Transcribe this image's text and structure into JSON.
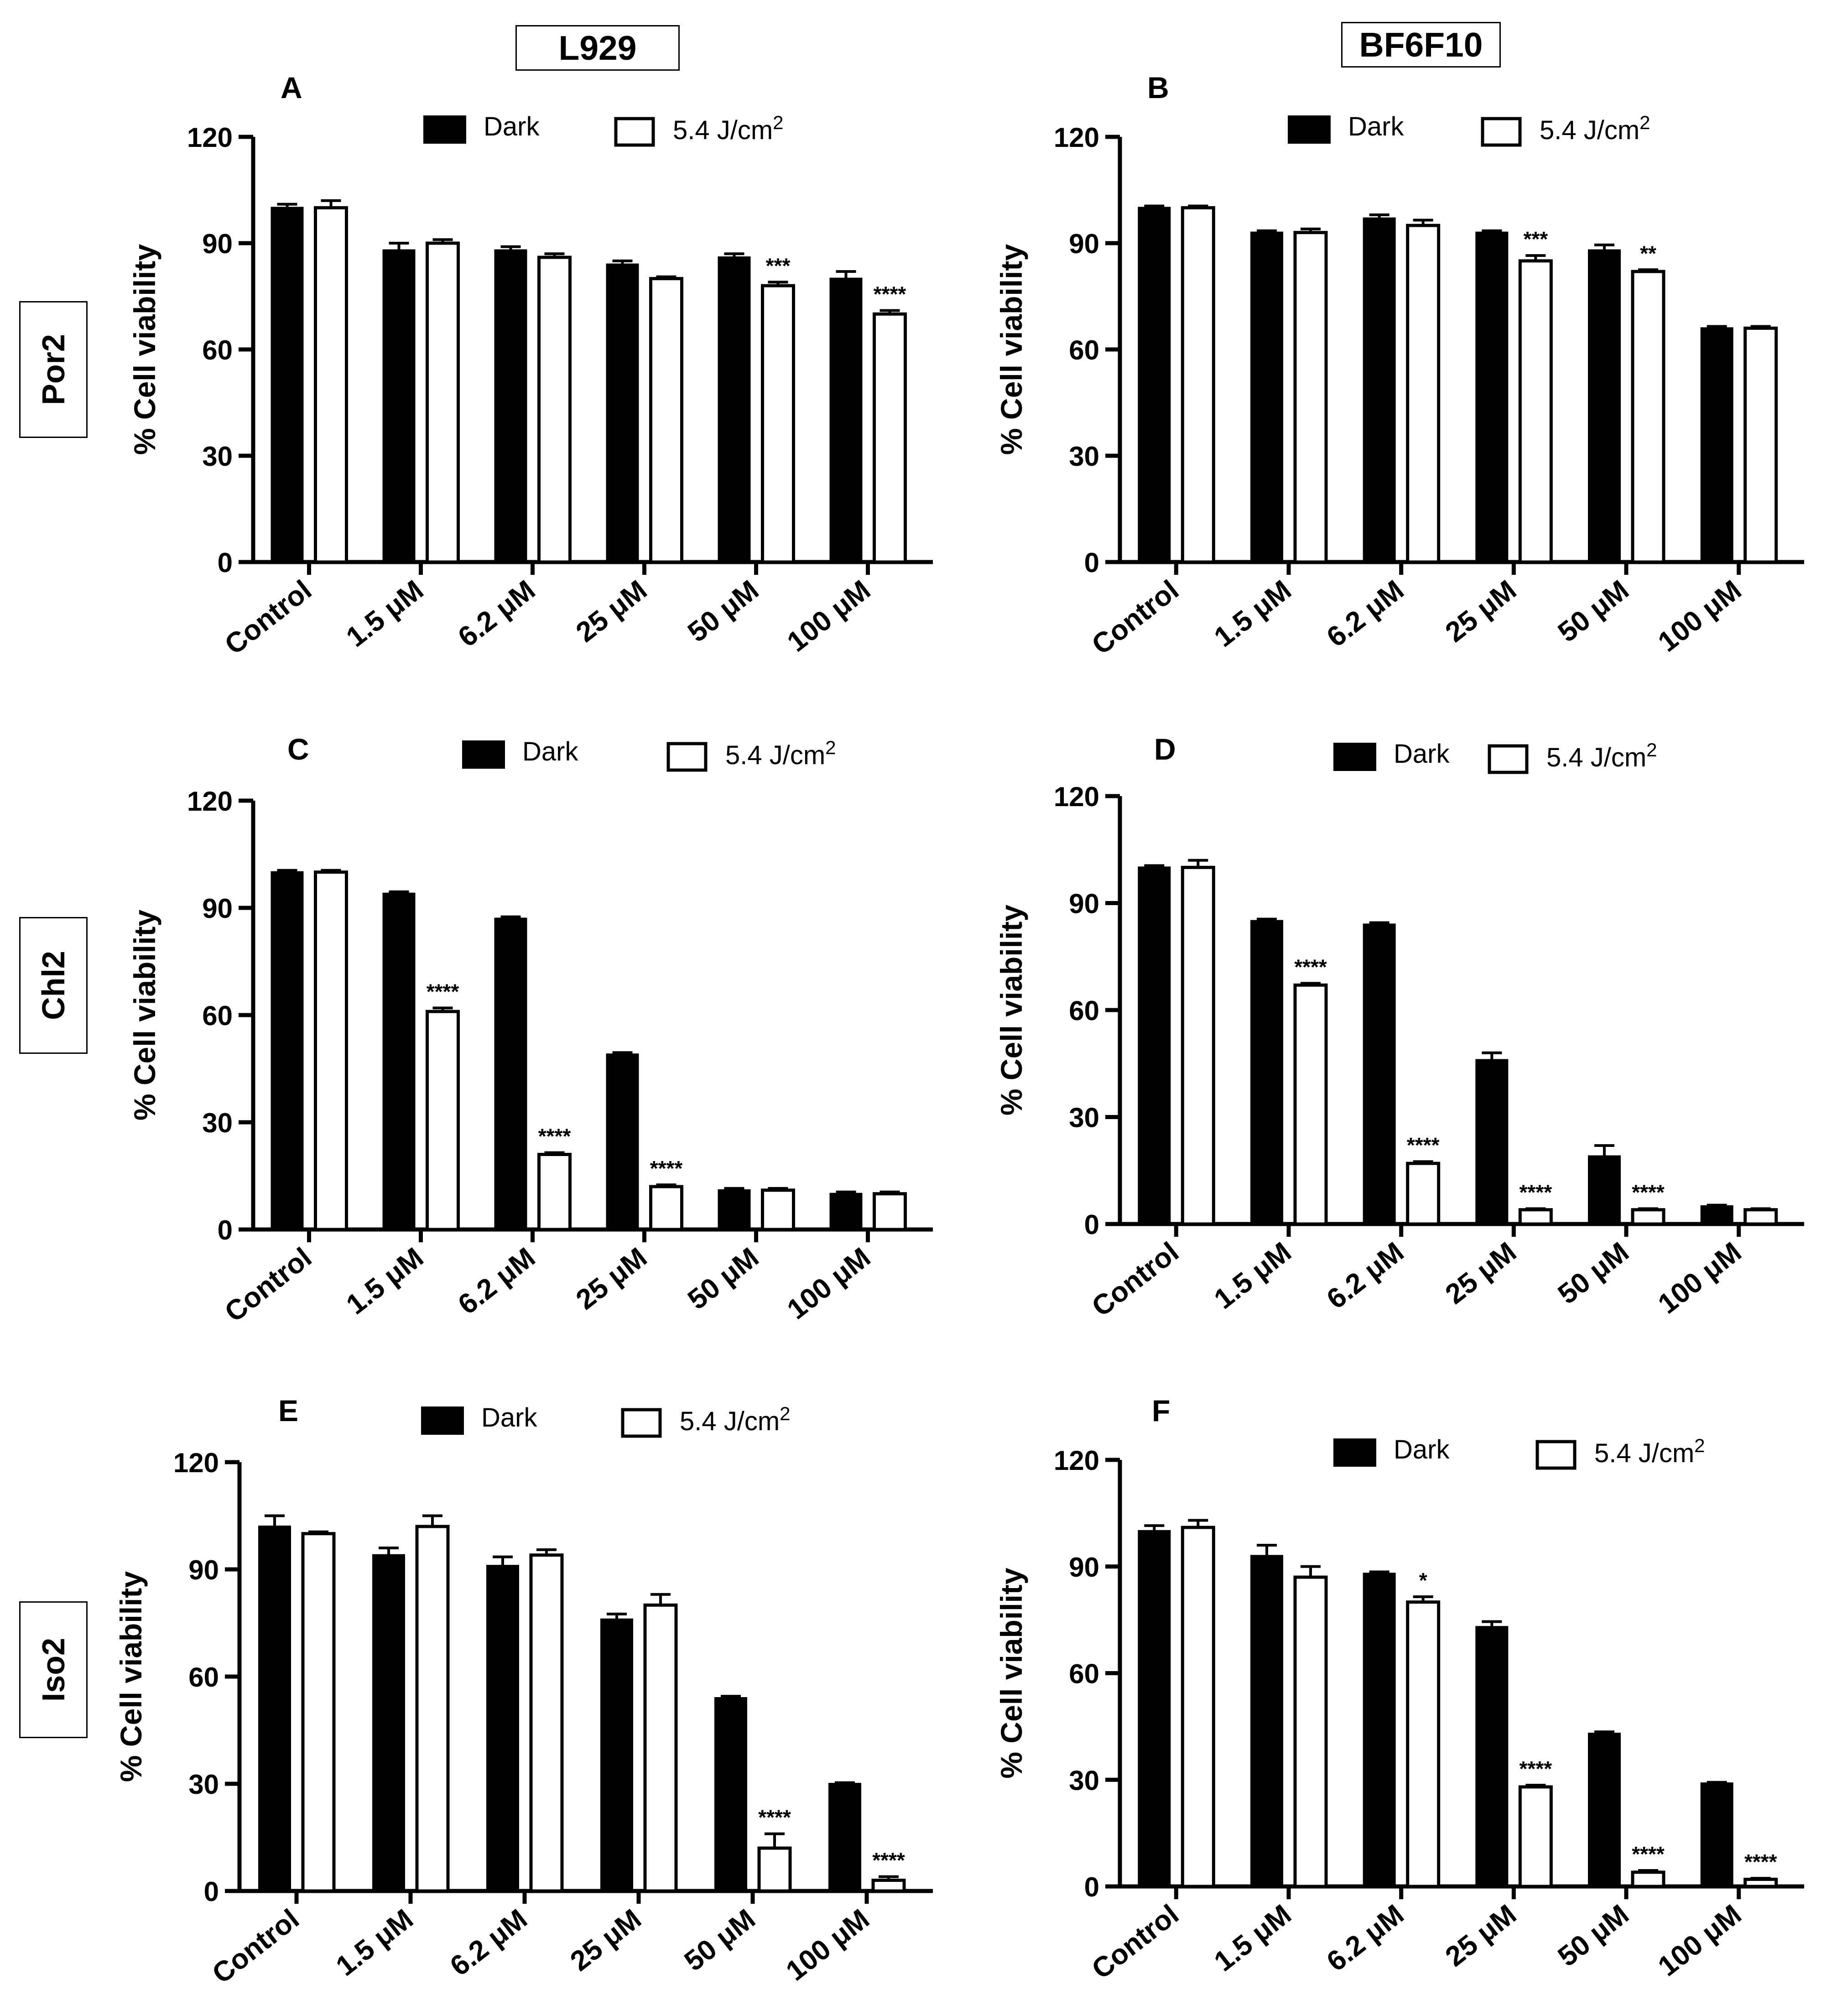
{
  "columns": [
    {
      "label": "L929"
    },
    {
      "label": "BF6F10"
    }
  ],
  "rows": [
    {
      "label": "Por2"
    },
    {
      "label": "Chl2"
    },
    {
      "label": "Iso2"
    }
  ],
  "colors": {
    "dark": "#000000",
    "light": "#ffffff"
  },
  "chart_data": [
    {
      "panel": "A",
      "type": "bar",
      "cell_line": "L929",
      "compound": "Por2",
      "ylabel": "% Cell viability",
      "ylim": [
        0,
        120
      ],
      "yticks": [
        0,
        30,
        60,
        90,
        120
      ],
      "categories": [
        "Control",
        "1.5 μM",
        "6.2 μM",
        "25 μM",
        "50 μM",
        "100 μM"
      ],
      "legend": {
        "dark": "Dark",
        "light": "5.4 J/cm",
        "light_sup": "2"
      },
      "series": [
        {
          "name": "Dark",
          "values": [
            100,
            88,
            88,
            84,
            86,
            80
          ],
          "errors": [
            1,
            2,
            1,
            1,
            1,
            2
          ]
        },
        {
          "name": "5.4 J/cm2",
          "values": [
            100,
            90,
            86,
            80,
            78,
            70
          ],
          "errors": [
            2,
            1,
            1,
            0.5,
            1,
            1
          ]
        }
      ],
      "annotations": [
        "",
        "",
        "",
        "",
        "***",
        "****"
      ]
    },
    {
      "panel": "B",
      "type": "bar",
      "cell_line": "BF6F10",
      "compound": "Por2",
      "ylabel": "% Cell viability",
      "ylim": [
        0,
        120
      ],
      "yticks": [
        0,
        30,
        60,
        90,
        120
      ],
      "categories": [
        "Control",
        "1.5 μM",
        "6.2 μM",
        "25 μM",
        "50 μM",
        "100 μM"
      ],
      "legend": {
        "dark": "Dark",
        "light": "5.4 J/cm",
        "light_sup": "2"
      },
      "series": [
        {
          "name": "Dark",
          "values": [
            100,
            93,
            97,
            93,
            88,
            66
          ],
          "errors": [
            0.5,
            0.5,
            1,
            0.5,
            1.5,
            0.5
          ]
        },
        {
          "name": "5.4 J/cm2",
          "values": [
            100,
            93,
            95,
            85,
            82,
            66
          ],
          "errors": [
            0.5,
            1,
            1.5,
            1.5,
            0.5,
            0.5
          ]
        }
      ],
      "annotations": [
        "",
        "",
        "",
        "***",
        "**",
        ""
      ]
    },
    {
      "panel": "C",
      "type": "bar",
      "cell_line": "L929",
      "compound": "Chl2",
      "ylabel": "% Cell viability",
      "ylim": [
        0,
        120
      ],
      "yticks": [
        0,
        30,
        60,
        90,
        120
      ],
      "categories": [
        "Control",
        "1.5 μM",
        "6.2 μM",
        "25 μM",
        "50 μM",
        "100 μM"
      ],
      "legend": {
        "dark": "Dark",
        "light": "5.4 J/cm",
        "light_sup": "2"
      },
      "series": [
        {
          "name": "Dark",
          "values": [
            100,
            94,
            87,
            49,
            11,
            10
          ],
          "errors": [
            0.5,
            0.5,
            0.5,
            0.5,
            0.5,
            0.5
          ]
        },
        {
          "name": "5.4 J/cm2",
          "values": [
            100,
            61,
            21,
            12,
            11,
            10
          ],
          "errors": [
            0.5,
            1,
            0.5,
            0.5,
            0.5,
            0.5
          ]
        }
      ],
      "annotations": [
        "",
        "****",
        "****",
        "****",
        "",
        ""
      ]
    },
    {
      "panel": "D",
      "type": "bar",
      "cell_line": "BF6F10",
      "compound": "Chl2",
      "ylabel": "% Cell viability",
      "ylim": [
        0,
        120
      ],
      "yticks": [
        0,
        30,
        60,
        90,
        120
      ],
      "categories": [
        "Control",
        "1.5 μM",
        "6.2 μM",
        "25 μM",
        "50 μM",
        "100 μM"
      ],
      "legend": {
        "dark": "Dark",
        "light": "5.4 J/cm",
        "light_sup": "2"
      },
      "series": [
        {
          "name": "Dark",
          "values": [
            100,
            85,
            84,
            46,
            19,
            5
          ],
          "errors": [
            0.5,
            0.5,
            0.5,
            2,
            3,
            0.3
          ]
        },
        {
          "name": "5.4 J/cm2",
          "values": [
            100,
            67,
            17,
            4,
            4,
            4
          ],
          "errors": [
            2,
            0.5,
            0.5,
            0.3,
            0.3,
            0.3
          ]
        }
      ],
      "annotations": [
        "",
        "****",
        "****",
        "****",
        "****",
        ""
      ]
    },
    {
      "panel": "E",
      "type": "bar",
      "cell_line": "L929",
      "compound": "Iso2",
      "ylabel": "% Cell viability",
      "ylim": [
        0,
        120
      ],
      "yticks": [
        0,
        30,
        60,
        90,
        120
      ],
      "categories": [
        "Control",
        "1.5 μM",
        "6.2 μM",
        "25 μM",
        "50 μM",
        "100 μM"
      ],
      "legend": {
        "dark": "Dark",
        "light": "5.4 J/cm",
        "light_sup": "2"
      },
      "series": [
        {
          "name": "Dark",
          "values": [
            102,
            94,
            91,
            76,
            54,
            30
          ],
          "errors": [
            3,
            2,
            2.5,
            1.5,
            0.5,
            0.3
          ]
        },
        {
          "name": "5.4 J/cm2",
          "values": [
            100,
            102,
            94,
            80,
            12,
            3
          ],
          "errors": [
            0.5,
            3,
            1.5,
            3,
            4,
            1
          ]
        }
      ],
      "annotations": [
        "",
        "",
        "",
        "",
        "****",
        "****"
      ]
    },
    {
      "panel": "F",
      "type": "bar",
      "cell_line": "BF6F10",
      "compound": "Iso2",
      "ylabel": "% Cell viability",
      "ylim": [
        0,
        120
      ],
      "yticks": [
        0,
        30,
        60,
        90,
        120
      ],
      "categories": [
        "Control",
        "1.5 μM",
        "6.2 μM",
        "25 μM",
        "50 μM",
        "100 μM"
      ],
      "legend": {
        "dark": "Dark",
        "light": "5.4 J/cm",
        "light_sup": "2"
      },
      "series": [
        {
          "name": "Dark",
          "values": [
            100,
            93,
            88,
            73,
            43,
            29
          ],
          "errors": [
            1.5,
            3,
            0.5,
            1.5,
            0.5,
            0.3
          ]
        },
        {
          "name": "5.4 J/cm2",
          "values": [
            101,
            87,
            80,
            28,
            4,
            2
          ],
          "errors": [
            2,
            3,
            1.5,
            0.5,
            0.5,
            0.3
          ]
        }
      ],
      "annotations": [
        "",
        "",
        "*",
        "****",
        "****",
        "****"
      ]
    }
  ]
}
